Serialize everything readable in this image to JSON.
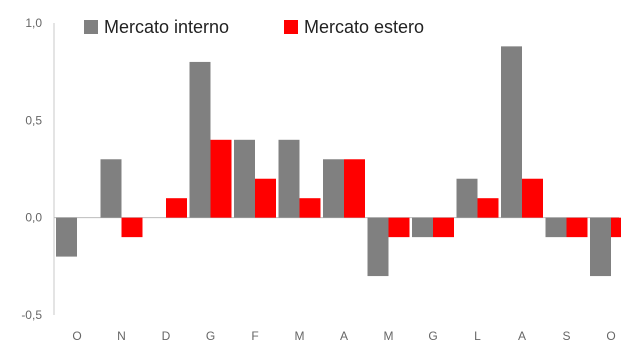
{
  "chart_data": {
    "type": "bar",
    "categories": [
      "O",
      "N",
      "D",
      "G",
      "F",
      "M",
      "A",
      "M",
      "G",
      "L",
      "A",
      "S",
      "O"
    ],
    "series": [
      {
        "name": "Mercato interno",
        "color": "#808080",
        "values": [
          -0.2,
          0.3,
          0.0,
          0.8,
          0.4,
          0.4,
          0.3,
          -0.3,
          -0.1,
          0.2,
          0.88,
          -0.1,
          -0.3
        ]
      },
      {
        "name": "Mercato estero",
        "color": "#ff0000",
        "values": [
          0.0,
          -0.1,
          0.1,
          0.4,
          0.2,
          0.1,
          0.3,
          -0.1,
          -0.1,
          0.1,
          0.2,
          -0.1,
          -0.1
        ]
      }
    ],
    "y_ticks": [
      "1,0",
      "0,5",
      "0,0",
      "-0,5"
    ],
    "ylim": [
      -0.5,
      1.0
    ],
    "grid": false,
    "legend_position": "top-left"
  }
}
